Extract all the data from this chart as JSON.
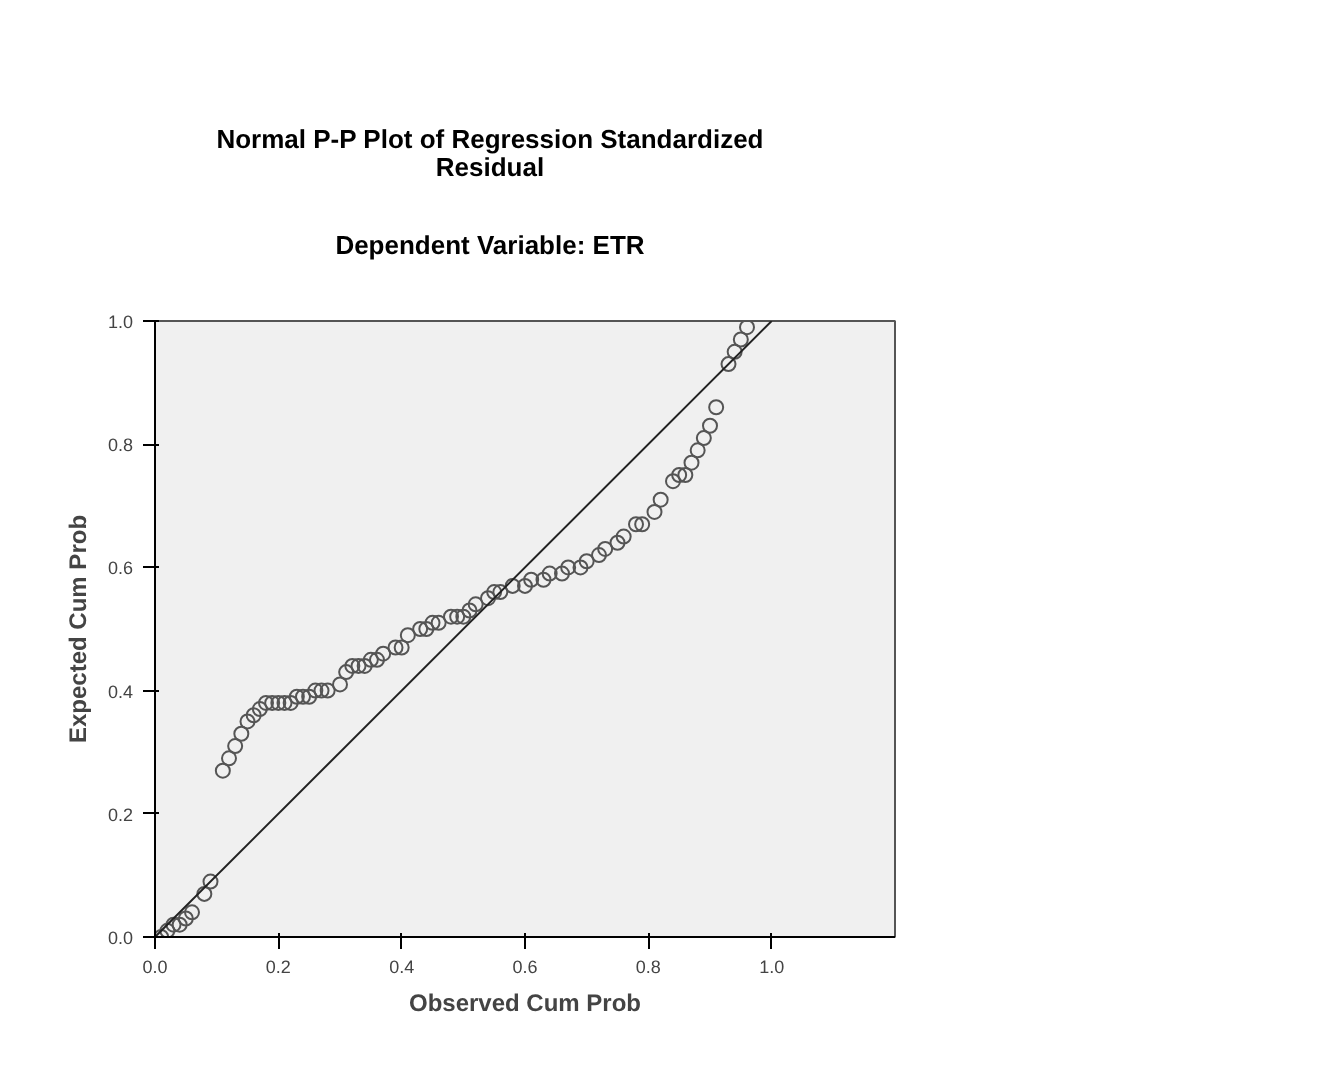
{
  "chart_data": {
    "type": "scatter",
    "title": "Normal P-P Plot of Regression Standardized\nResidual",
    "subtitle": "Dependent Variable: ETR",
    "xlabel": "Observed Cum Prob",
    "ylabel": "Expected Cum Prob",
    "xlim": [
      0,
      1.2
    ],
    "ylim": [
      0,
      1
    ],
    "xticks": [
      {
        "value": 0,
        "label": "0.0"
      },
      {
        "value": 0.2,
        "label": "0.2"
      },
      {
        "value": 0.4,
        "label": "0.4"
      },
      {
        "value": 0.6,
        "label": "0.6"
      },
      {
        "value": 0.8,
        "label": "0.8"
      },
      {
        "value": 1,
        "label": "1.0"
      }
    ],
    "yticks": [
      {
        "value": 0,
        "label": "0.0"
      },
      {
        "value": 0.2,
        "label": "0.2"
      },
      {
        "value": 0.4,
        "label": "0.4"
      },
      {
        "value": 0.6,
        "label": "0.6"
      },
      {
        "value": 0.8,
        "label": "0.8"
      },
      {
        "value": 1,
        "label": "1.0"
      }
    ],
    "grid": false,
    "marker": "circle",
    "series": [
      {
        "color": "#555555",
        "x": [
          0.01,
          0.02,
          0.03,
          0.04,
          0.05,
          0.06,
          0.08,
          0.09,
          0.11,
          0.12,
          0.13,
          0.14,
          0.15,
          0.16,
          0.17,
          0.18,
          0.19,
          0.2,
          0.21,
          0.22,
          0.23,
          0.24,
          0.25,
          0.26,
          0.27,
          0.28,
          0.3,
          0.31,
          0.32,
          0.33,
          0.34,
          0.35,
          0.36,
          0.37,
          0.39,
          0.4,
          0.41,
          0.43,
          0.44,
          0.45,
          0.46,
          0.48,
          0.49,
          0.5,
          0.51,
          0.52,
          0.54,
          0.55,
          0.56,
          0.58,
          0.6,
          0.61,
          0.63,
          0.64,
          0.66,
          0.67,
          0.69,
          0.7,
          0.72,
          0.73,
          0.75,
          0.76,
          0.78,
          0.79,
          0.81,
          0.82,
          0.84,
          0.85,
          0.86,
          0.87,
          0.88,
          0.89,
          0.9,
          0.91,
          0.93,
          0.94,
          0.95,
          0.96
        ],
        "values": [
          0.0,
          0.01,
          0.02,
          0.02,
          0.03,
          0.04,
          0.07,
          0.09,
          0.27,
          0.29,
          0.31,
          0.33,
          0.35,
          0.36,
          0.37,
          0.38,
          0.38,
          0.38,
          0.38,
          0.38,
          0.39,
          0.39,
          0.39,
          0.4,
          0.4,
          0.4,
          0.41,
          0.43,
          0.44,
          0.44,
          0.44,
          0.45,
          0.45,
          0.46,
          0.47,
          0.47,
          0.49,
          0.5,
          0.5,
          0.51,
          0.51,
          0.52,
          0.52,
          0.52,
          0.53,
          0.54,
          0.55,
          0.56,
          0.56,
          0.57,
          0.57,
          0.58,
          0.58,
          0.59,
          0.59,
          0.6,
          0.6,
          0.61,
          0.62,
          0.63,
          0.64,
          0.65,
          0.67,
          0.67,
          0.69,
          0.71,
          0.74,
          0.75,
          0.75,
          0.77,
          0.79,
          0.81,
          0.83,
          0.86,
          0.93,
          0.95,
          0.97,
          0.99
        ]
      },
      {
        "type": "line",
        "color": "#222222",
        "x": [
          0,
          1
        ],
        "values": [
          0,
          1
        ],
        "marker": "none"
      }
    ]
  }
}
